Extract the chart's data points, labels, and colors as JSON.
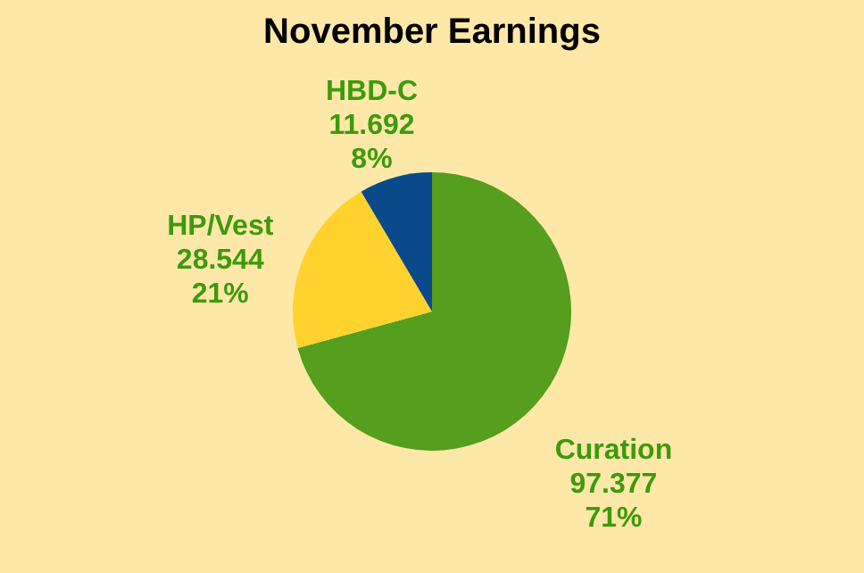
{
  "chart_data": {
    "type": "pie",
    "title": "November Earnings",
    "categories": [
      "Curation",
      "HP/Vest",
      "HBD-C"
    ],
    "values": [
      97.377,
      28.544,
      11.692
    ],
    "colors": [
      "#559e1e",
      "#ffd22e",
      "#0a4a8a"
    ],
    "data_labels": true,
    "annotations": [
      "71%",
      "21%",
      "8%"
    ],
    "legend": false
  }
}
